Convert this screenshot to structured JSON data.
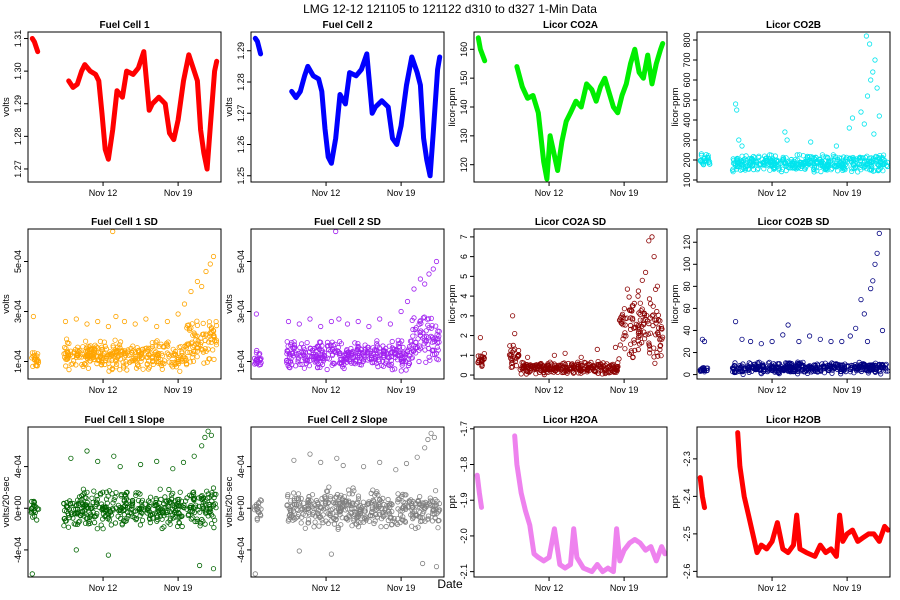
{
  "header": {
    "title": "LMG   12-12     121105 to 121122     d310 to d327   1-Min Data",
    "xlabel": "Date"
  },
  "x_axis": {
    "start_day": 5,
    "end_day": 23,
    "tick_days": [
      12,
      19
    ],
    "tick_labels": [
      "Nov 12",
      "Nov 19"
    ]
  },
  "chart_data": [
    {
      "type": "line",
      "title": "Fuel Cell 1",
      "ylabel": "volts",
      "color": "#ff0000",
      "ylim": [
        1.266,
        1.312
      ],
      "yticks": [
        1.27,
        1.28,
        1.29,
        1.3,
        1.31
      ],
      "yticklabels": [
        "1.27",
        "1.28",
        "1.29",
        "1.30",
        "1.31"
      ],
      "segments": [
        {
          "x": [
            5.4,
            5.6,
            5.9
          ],
          "y": [
            1.31,
            1.309,
            1.306
          ]
        },
        {
          "x": [
            8.8,
            9.2,
            9.6,
            10.0,
            10.3,
            10.8,
            11.3,
            11.6,
            11.9,
            12.2,
            12.5,
            12.9,
            13.3,
            13.8,
            14.2,
            14.8,
            15.3,
            15.8,
            16.3,
            16.6,
            17.2,
            17.8,
            18.2,
            18.6,
            19.0,
            19.5,
            20.0,
            20.5,
            20.8,
            21.1,
            21.4,
            21.7,
            22.0,
            22.4,
            22.6
          ],
          "y": [
            1.297,
            1.295,
            1.296,
            1.3,
            1.302,
            1.3,
            1.299,
            1.297,
            1.287,
            1.276,
            1.273,
            1.282,
            1.294,
            1.292,
            1.3,
            1.299,
            1.301,
            1.306,
            1.288,
            1.29,
            1.292,
            1.29,
            1.281,
            1.279,
            1.285,
            1.297,
            1.305,
            1.3,
            1.297,
            1.282,
            1.275,
            1.27,
            1.283,
            1.3,
            1.303
          ]
        }
      ]
    },
    {
      "type": "line",
      "title": "Fuel Cell 2",
      "ylabel": "volts",
      "color": "#0000ff",
      "ylim": [
        1.248,
        1.296
      ],
      "yticks": [
        1.25,
        1.26,
        1.27,
        1.28,
        1.29
      ],
      "yticklabels": [
        "1.25",
        "1.26",
        "1.27",
        "1.28",
        "1.29"
      ],
      "segments": [
        {
          "x": [
            5.4,
            5.6,
            5.9
          ],
          "y": [
            1.294,
            1.293,
            1.289
          ]
        },
        {
          "x": [
            8.8,
            9.2,
            9.6,
            10.0,
            10.3,
            10.8,
            11.3,
            11.6,
            11.9,
            12.2,
            12.5,
            12.9,
            13.3,
            13.8,
            14.2,
            14.8,
            15.3,
            15.8,
            16.3,
            16.6,
            17.2,
            17.8,
            18.2,
            18.6,
            19.0,
            19.5,
            20.0,
            20.5,
            20.8,
            21.1,
            21.4,
            21.7,
            22.0,
            22.4,
            22.6
          ],
          "y": [
            1.277,
            1.275,
            1.277,
            1.282,
            1.285,
            1.282,
            1.281,
            1.277,
            1.265,
            1.256,
            1.254,
            1.262,
            1.276,
            1.273,
            1.283,
            1.282,
            1.284,
            1.289,
            1.27,
            1.272,
            1.274,
            1.272,
            1.262,
            1.26,
            1.266,
            1.279,
            1.288,
            1.283,
            1.279,
            1.262,
            1.255,
            1.25,
            1.264,
            1.284,
            1.288
          ]
        }
      ]
    },
    {
      "type": "line",
      "title": "Licor CO2A",
      "ylabel": "licor-ppm",
      "color": "#00ee00",
      "ylim": [
        114,
        166
      ],
      "yticks": [
        120,
        130,
        140,
        150,
        160
      ],
      "yticklabels": [
        "120",
        "130",
        "140",
        "150",
        "160"
      ],
      "segments": [
        {
          "x": [
            5.4,
            5.6,
            5.8,
            6.0
          ],
          "y": [
            164,
            160,
            158,
            156
          ]
        },
        {
          "x": [
            9.0,
            9.5,
            10.0,
            10.5,
            11.0,
            11.5,
            11.8,
            12.1,
            12.4,
            12.8,
            13.2,
            13.6,
            14.0,
            14.5,
            15.0,
            15.5,
            16.0,
            16.4,
            16.8,
            17.2,
            17.6,
            18.0,
            18.4,
            18.8,
            19.2,
            19.6,
            20.0,
            20.4,
            20.8,
            21.2,
            21.6,
            22.0,
            22.4,
            22.6
          ],
          "y": [
            154,
            147,
            143,
            144,
            138,
            121,
            115,
            130,
            125,
            118,
            128,
            135,
            138,
            142,
            140,
            148,
            146,
            142,
            147,
            150,
            145,
            140,
            138,
            144,
            148,
            155,
            160,
            152,
            150,
            158,
            148,
            155,
            160,
            162
          ]
        }
      ]
    },
    {
      "type": "scatter",
      "title": "Licor CO2B",
      "ylabel": "licor-ppm",
      "color": "#00e5ee",
      "ylim": [
        90,
        840
      ],
      "yticks": [
        100,
        200,
        300,
        400,
        500,
        600,
        700,
        800
      ],
      "yticklabels": [
        "100",
        "200",
        "300",
        "400",
        "500",
        "600",
        "700",
        "800"
      ],
      "bands": [
        {
          "from": 5.3,
          "to": 6.2,
          "lo": 150,
          "hi": 240
        },
        {
          "from": 8.3,
          "to": 22.8,
          "lo": 135,
          "hi": 230
        }
      ],
      "points": {
        "x": [
          8.6,
          8.7,
          8.9,
          9.2,
          13.2,
          13.4,
          15.6,
          18.0,
          19.2,
          19.5,
          20.3,
          20.6,
          20.9,
          21.2,
          21.4,
          21.6,
          21.8,
          22.0,
          20.8,
          21.1,
          21.5
        ],
        "y": [
          480,
          450,
          300,
          270,
          340,
          300,
          290,
          270,
          360,
          410,
          440,
          380,
          520,
          600,
          640,
          700,
          560,
          420,
          820,
          780,
          330
        ]
      }
    },
    {
      "type": "scatter",
      "title": "Fuel Cell 1 SD",
      "ylabel": "volts",
      "color": "#ffa500",
      "ylim": [
        3e-05,
        0.00063
      ],
      "yticks": [
        0.0001,
        0.0003,
        0.0005
      ],
      "yticklabels": [
        "1e-04",
        "3e-04",
        "5e-04"
      ],
      "bands": [
        {
          "from": 5.3,
          "to": 6.0,
          "lo": 6e-05,
          "hi": 0.00016
        },
        {
          "from": 8.3,
          "to": 19.8,
          "lo": 6e-05,
          "hi": 0.00019
        },
        {
          "from": 19.8,
          "to": 22.6,
          "lo": 8e-05,
          "hi": 0.0003
        }
      ],
      "points": {
        "x": [
          5.5,
          8.5,
          9.5,
          10.5,
          11.5,
          12.5,
          13.2,
          14.0,
          15.0,
          16.0,
          17.0,
          18.0,
          19.0,
          19.6,
          20.2,
          20.8,
          21.2,
          21.6,
          22.0,
          22.3,
          12.9
        ],
        "y": [
          0.00028,
          0.00026,
          0.00027,
          0.00025,
          0.00026,
          0.00024,
          0.00028,
          0.00026,
          0.00025,
          0.00027,
          0.00024,
          0.00026,
          0.00029,
          0.00033,
          0.00038,
          0.00042,
          0.0004,
          0.00046,
          0.00049,
          0.00052,
          0.00062
        ]
      }
    },
    {
      "type": "scatter",
      "title": "Fuel Cell 2 SD",
      "ylabel": "volts",
      "color": "#a020f0",
      "ylim": [
        3e-05,
        0.00063
      ],
      "yticks": [
        0.0001,
        0.0003,
        0.0005
      ],
      "yticklabels": [
        "1e-04",
        "3e-04",
        "5e-04"
      ],
      "bands": [
        {
          "from": 5.3,
          "to": 6.0,
          "lo": 6e-05,
          "hi": 0.00016
        },
        {
          "from": 8.3,
          "to": 19.8,
          "lo": 6e-05,
          "hi": 0.00019
        },
        {
          "from": 19.8,
          "to": 22.6,
          "lo": 8e-05,
          "hi": 0.0003
        }
      ],
      "points": {
        "x": [
          5.5,
          8.5,
          9.5,
          10.5,
          11.5,
          12.5,
          13.2,
          14.0,
          15.0,
          16.0,
          17.0,
          18.0,
          19.0,
          19.6,
          20.2,
          20.8,
          21.2,
          21.6,
          22.0,
          22.3,
          12.9
        ],
        "y": [
          0.00029,
          0.00026,
          0.00025,
          0.00027,
          0.00024,
          0.00026,
          0.00027,
          0.00025,
          0.00026,
          0.00024,
          0.00027,
          0.00025,
          0.0003,
          0.00034,
          0.00039,
          0.00043,
          0.00041,
          0.00045,
          0.00047,
          0.0005,
          0.00062
        ]
      }
    },
    {
      "type": "scatter",
      "title": "Licor CO2A SD",
      "ylabel": "licor-ppm",
      "color": "#8b0000",
      "ylim": [
        -0.2,
        7.4
      ],
      "yticks": [
        0,
        1,
        2,
        3,
        4,
        5,
        6,
        7
      ],
      "yticklabels": [
        "0",
        "1",
        "2",
        "3",
        "4",
        "5",
        "6",
        "7"
      ],
      "bands": [
        {
          "from": 5.3,
          "to": 6.0,
          "lo": 0.3,
          "hi": 1.2
        },
        {
          "from": 8.3,
          "to": 9.2,
          "lo": 0.2,
          "hi": 1.6
        },
        {
          "from": 9.2,
          "to": 18.5,
          "lo": 0.0,
          "hi": 0.7
        },
        {
          "from": 18.5,
          "to": 22.6,
          "lo": 0.5,
          "hi": 4.5
        }
      ],
      "points": {
        "x": [
          5.6,
          8.6,
          8.8,
          10.0,
          12.5,
          13.5,
          15.0,
          16.5,
          18.2,
          19.0,
          19.8,
          20.3,
          20.7,
          21.0,
          21.3,
          21.6,
          21.8,
          22.1,
          22.4
        ],
        "y": [
          1.9,
          3.0,
          2.1,
          0.9,
          1.0,
          1.1,
          0.9,
          1.3,
          1.4,
          2.0,
          2.8,
          4.0,
          4.8,
          5.2,
          6.8,
          7.0,
          6.0,
          4.5,
          1.5
        ]
      }
    },
    {
      "type": "scatter",
      "title": "Licor CO2B SD",
      "ylabel": "licor-ppm",
      "color": "#000080",
      "ylim": [
        -4,
        132
      ],
      "yticks": [
        0,
        20,
        40,
        60,
        80,
        100,
        120
      ],
      "yticklabels": [
        "0",
        "20",
        "40",
        "60",
        "80",
        "100",
        "120"
      ],
      "bands": [
        {
          "from": 5.3,
          "to": 6.0,
          "lo": 0,
          "hi": 8
        },
        {
          "from": 8.3,
          "to": 22.8,
          "lo": 0,
          "hi": 12
        }
      ],
      "points": {
        "x": [
          5.5,
          5.7,
          8.6,
          9.2,
          10.0,
          11.0,
          12.0,
          13.0,
          13.5,
          14.5,
          15.5,
          16.5,
          17.5,
          18.5,
          19.3,
          19.8,
          20.3,
          20.6,
          20.9,
          21.2,
          21.4,
          21.6,
          21.8,
          22.0,
          22.3
        ],
        "y": [
          32,
          30,
          48,
          32,
          30,
          28,
          30,
          36,
          45,
          30,
          35,
          32,
          30,
          30,
          35,
          42,
          68,
          55,
          30,
          78,
          85,
          100,
          110,
          128,
          40
        ]
      }
    },
    {
      "type": "scatter",
      "title": "Fuel Cell 1 Slope",
      "ylabel": "volts/20-sec",
      "color": "#006400",
      "ylim": [
        -0.00066,
        0.00078
      ],
      "yticks": [
        -0.0004,
        0,
        0.0004
      ],
      "yticklabels": [
        "-4e-04",
        "0e+00",
        "4e-04"
      ],
      "bands": [
        {
          "from": 5.3,
          "to": 6.0,
          "lo": -0.00013,
          "hi": 0.00013
        },
        {
          "from": 8.3,
          "to": 22.6,
          "lo": -0.00021,
          "hi": 0.00021
        }
      ],
      "points": {
        "x": [
          5.4,
          9.0,
          10.5,
          11.5,
          13.0,
          13.6,
          15.5,
          17.0,
          18.5,
          19.5,
          20.5,
          21.2,
          21.5,
          21.8,
          22.1,
          22.3,
          9.5,
          12.5,
          21.0
        ],
        "y": [
          -0.00063,
          0.00048,
          0.00055,
          0.00045,
          0.0005,
          0.0004,
          0.00042,
          0.00045,
          0.00038,
          0.00044,
          0.0005,
          0.0006,
          0.00068,
          0.00074,
          0.0007,
          -0.00058,
          -0.0004,
          -0.00045,
          -0.00055
        ]
      }
    },
    {
      "type": "scatter",
      "title": "Fuel Cell 2 Slope",
      "ylabel": "volts/20-sec",
      "color": "#808080",
      "ylim": [
        -0.00066,
        0.00078
      ],
      "yticks": [
        -0.0004,
        0,
        0.0004
      ],
      "yticklabels": [
        "-4e-04",
        "0e+00",
        "4e-04"
      ],
      "bands": [
        {
          "from": 5.3,
          "to": 6.0,
          "lo": -0.00013,
          "hi": 0.00013
        },
        {
          "from": 8.3,
          "to": 22.6,
          "lo": -0.00021,
          "hi": 0.00021
        }
      ],
      "points": {
        "x": [
          5.4,
          9.0,
          10.5,
          11.5,
          13.0,
          13.6,
          15.5,
          17.0,
          18.5,
          19.5,
          20.5,
          21.2,
          21.5,
          21.8,
          22.1,
          22.3,
          9.5,
          12.5,
          21.0
        ],
        "y": [
          -0.00063,
          0.00046,
          0.00052,
          0.00044,
          0.00048,
          0.00041,
          0.0004,
          0.00044,
          0.00037,
          0.00043,
          0.00049,
          0.00058,
          0.00066,
          0.00072,
          0.00068,
          -0.00056,
          -0.00041,
          -0.00044,
          -0.00053
        ]
      }
    },
    {
      "type": "line",
      "title": "Licor H2OA",
      "ylabel": "ppt",
      "color": "#ee82ee",
      "ylim": [
        -2.115,
        -1.695
      ],
      "yticks": [
        -2.1,
        -2.0,
        -1.9,
        -1.8,
        -1.7
      ],
      "yticklabels": [
        "-2.1",
        "-2.0",
        "-1.9",
        "-1.8",
        "-1.7"
      ],
      "segments": [
        {
          "x": [
            5.3,
            5.5,
            5.7
          ],
          "y": [
            -1.83,
            -1.88,
            -1.92
          ]
        },
        {
          "x": [
            8.8,
            9.0,
            9.4,
            9.8,
            10.2,
            10.6,
            11.0,
            11.5,
            12.0,
            12.5,
            13.0,
            13.5,
            14.0,
            14.3,
            14.6,
            15.2,
            16.0,
            16.5,
            17.0,
            17.5,
            18.0,
            18.3,
            18.6,
            19.0,
            19.5,
            20.0,
            20.5,
            21.0,
            21.5,
            22.0,
            22.5,
            22.8
          ],
          "y": [
            -1.72,
            -1.8,
            -1.88,
            -1.93,
            -1.97,
            -2.05,
            -2.06,
            -2.07,
            -2.06,
            -1.98,
            -2.08,
            -2.09,
            -2.08,
            -1.98,
            -2.06,
            -2.09,
            -2.1,
            -2.08,
            -2.1,
            -2.09,
            -2.1,
            -1.98,
            -2.07,
            -2.04,
            -2.02,
            -2.01,
            -2.02,
            -2.04,
            -2.03,
            -2.07,
            -2.03,
            -2.05
          ]
        }
      ]
    },
    {
      "type": "line",
      "title": "Licor H2OB",
      "ylabel": "ppt",
      "color": "#ff0000",
      "ylim": [
        -2.615,
        -2.215
      ],
      "yticks": [
        -2.6,
        -2.5,
        -2.4,
        -2.3
      ],
      "yticklabels": [
        "-2.6",
        "-2.5",
        "-2.4",
        "-2.3"
      ],
      "segments": [
        {
          "x": [
            5.3,
            5.5,
            5.7
          ],
          "y": [
            -2.35,
            -2.4,
            -2.43
          ]
        },
        {
          "x": [
            8.8,
            9.0,
            9.4,
            9.8,
            10.2,
            10.6,
            11.0,
            11.5,
            12.0,
            12.5,
            13.0,
            13.5,
            14.0,
            14.3,
            14.6,
            15.2,
            16.0,
            16.5,
            17.0,
            17.5,
            18.0,
            18.3,
            18.6,
            19.0,
            19.5,
            20.0,
            20.5,
            21.0,
            21.5,
            22.0,
            22.5,
            22.8
          ],
          "y": [
            -2.23,
            -2.32,
            -2.4,
            -2.45,
            -2.5,
            -2.55,
            -2.53,
            -2.54,
            -2.52,
            -2.47,
            -2.54,
            -2.55,
            -2.53,
            -2.45,
            -2.54,
            -2.55,
            -2.56,
            -2.53,
            -2.55,
            -2.54,
            -2.56,
            -2.45,
            -2.52,
            -2.5,
            -2.49,
            -2.52,
            -2.51,
            -2.5,
            -2.5,
            -2.52,
            -2.48,
            -2.49
          ]
        }
      ]
    }
  ]
}
